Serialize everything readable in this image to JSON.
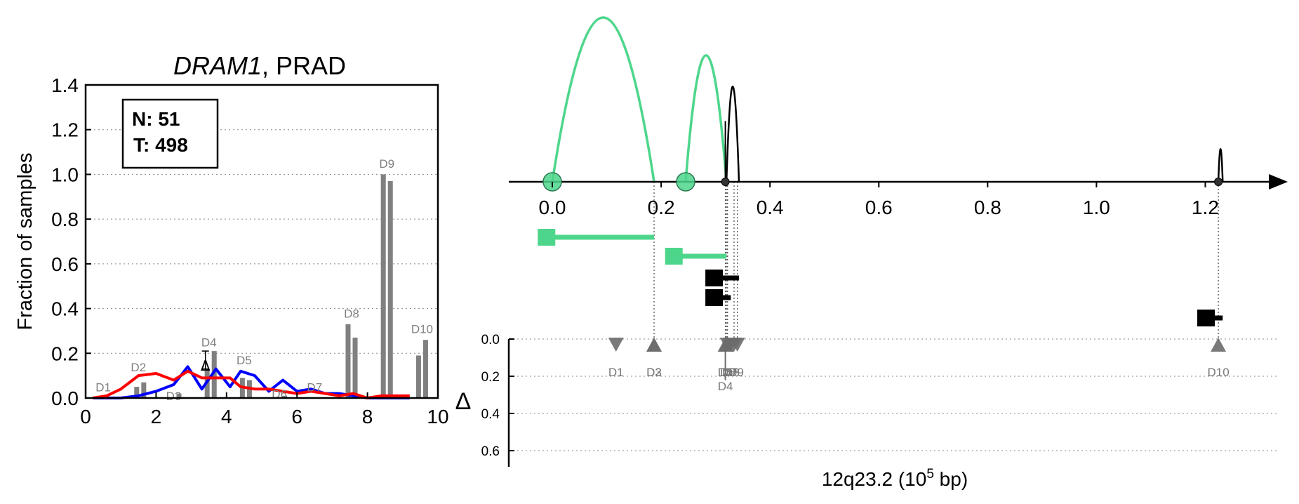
{
  "chart_data": [
    {
      "type": "bar",
      "title_gene": "DRAM1",
      "title_rest": ", PRAD",
      "xlim": [
        0,
        10
      ],
      "ylim": [
        0,
        1.4
      ],
      "ylabel": "Fraction of samples",
      "xticks": [
        0,
        2,
        4,
        6,
        8,
        10
      ],
      "yticks": [
        0.0,
        0.2,
        0.4,
        0.6,
        0.8,
        1.0,
        1.2,
        1.4
      ],
      "grid": "horizontal dotted",
      "legend_box": {
        "n_label": "N: 51",
        "t_label": "T: 498"
      },
      "bar_color": "#808080",
      "bars": [
        {
          "x": 0.55,
          "value": 0.0
        },
        {
          "x": 0.75,
          "value": 0.0
        },
        {
          "x": 1.45,
          "value": 0.05
        },
        {
          "x": 1.65,
          "value": 0.07
        },
        {
          "x": 2.45,
          "value": 0.0
        },
        {
          "x": 2.65,
          "value": 0.02
        },
        {
          "x": 3.45,
          "value": 0.13
        },
        {
          "x": 3.65,
          "value": 0.21
        },
        {
          "x": 4.45,
          "value": 0.09
        },
        {
          "x": 4.65,
          "value": 0.08
        },
        {
          "x": 5.45,
          "value": 0.0
        },
        {
          "x": 5.65,
          "value": 0.01
        },
        {
          "x": 6.45,
          "value": 0.0
        },
        {
          "x": 6.65,
          "value": 0.0
        },
        {
          "x": 7.45,
          "value": 0.33
        },
        {
          "x": 7.65,
          "value": 0.27
        },
        {
          "x": 8.45,
          "value": 1.0
        },
        {
          "x": 8.65,
          "value": 0.97
        },
        {
          "x": 9.45,
          "value": 0.19
        },
        {
          "x": 9.65,
          "value": 0.26
        }
      ],
      "bar_labels": [
        {
          "text": "D1",
          "x": 0.5,
          "y": 0.03
        },
        {
          "text": "D2",
          "x": 1.5,
          "y": 0.12
        },
        {
          "text": "D3",
          "x": 2.5,
          "y": -0.01
        },
        {
          "text": "D4",
          "x": 3.5,
          "y": 0.23
        },
        {
          "text": "D5",
          "x": 4.5,
          "y": 0.15
        },
        {
          "text": "D6",
          "x": 5.5,
          "y": 0.0
        },
        {
          "text": "D7",
          "x": 6.5,
          "y": 0.03
        },
        {
          "text": "D8",
          "x": 7.55,
          "y": 0.36
        },
        {
          "text": "D9",
          "x": 8.55,
          "y": 1.03
        },
        {
          "text": "D10",
          "x": 9.55,
          "y": 0.29
        }
      ],
      "series": [
        {
          "color": "#0000ff",
          "x": [
            0.2,
            0.6,
            1.0,
            1.5,
            2.0,
            2.5,
            2.9,
            3.3,
            3.7,
            4.1,
            4.4,
            4.8,
            5.2,
            5.6,
            6.0,
            6.4,
            6.8,
            7.2,
            7.6,
            8.0,
            8.4,
            8.8,
            9.2
          ],
          "y": [
            0.0,
            0.0,
            0.0,
            0.01,
            0.03,
            0.06,
            0.14,
            0.04,
            0.13,
            0.05,
            0.12,
            0.1,
            0.03,
            0.08,
            0.03,
            0.04,
            0.02,
            0.02,
            0.01,
            0.0,
            0.0,
            0.0,
            0.0
          ]
        },
        {
          "color": "#ff0000",
          "x": [
            0.2,
            0.6,
            1.0,
            1.5,
            2.0,
            2.5,
            2.9,
            3.3,
            3.7,
            4.1,
            4.4,
            4.8,
            5.2,
            5.6,
            6.0,
            6.4,
            6.8,
            7.2,
            7.6,
            8.0,
            8.4,
            8.8,
            9.2
          ],
          "y": [
            0.0,
            0.01,
            0.04,
            0.1,
            0.11,
            0.08,
            0.12,
            0.09,
            0.09,
            0.09,
            0.05,
            0.04,
            0.04,
            0.03,
            0.02,
            0.03,
            0.02,
            0.01,
            0.02,
            0.0,
            0.01,
            0.01,
            0.01
          ]
        }
      ],
      "delta_marker": {
        "symbol": "Δ",
        "x": 3.4,
        "y": 0.15,
        "err": [
          0.13,
          0.21
        ]
      }
    },
    {
      "type": "scatter",
      "xlim": [
        -0.08,
        1.3
      ],
      "xticks": [
        0.0,
        0.2,
        0.4,
        0.6,
        0.8,
        1.0,
        1.2
      ],
      "xlabel_main": "12q23.2 (10",
      "xlabel_exp": "5",
      "xlabel_tail": " bp)",
      "arc_color_green": "#4dd68b",
      "arcs": [
        {
          "x1": 0.0,
          "x2": 0.187,
          "peak": 1.0,
          "color": "green"
        },
        {
          "x1": 0.245,
          "x2": 0.32,
          "peak": 0.77,
          "color": "green"
        },
        {
          "x1": 0.32,
          "x2": 0.343,
          "peak": 0.58,
          "color": "black"
        },
        {
          "x1": 1.224,
          "x2": 1.232,
          "peak": 0.2,
          "color": "black"
        }
      ],
      "spike_lines": [
        {
          "x": 0.318,
          "peak": 0.37
        }
      ],
      "circles": [
        {
          "x": 0.0,
          "color": "green",
          "size": "large"
        },
        {
          "x": 0.245,
          "color": "green",
          "size": "large"
        },
        {
          "x": 0.318,
          "color": "black",
          "size": "small"
        },
        {
          "x": 1.224,
          "color": "black",
          "size": "small"
        }
      ],
      "tracks": [
        {
          "start": -0.01,
          "end": 0.187,
          "row": 1,
          "color": "green"
        },
        {
          "start": 0.224,
          "end": 0.32,
          "row": 2,
          "color": "green"
        },
        {
          "start": 0.298,
          "end": 0.343,
          "row": 3,
          "color": "black"
        },
        {
          "start": 0.298,
          "end": 0.328,
          "row": 4,
          "color": "black"
        },
        {
          "start": 1.202,
          "end": 1.232,
          "row": 5,
          "color": "black"
        }
      ],
      "delta_axis": {
        "label": "Δ",
        "ticks": [
          0.0,
          0.2,
          0.4,
          0.6
        ],
        "range": [
          0,
          0.7
        ]
      },
      "delta_markers": [
        {
          "text": "D1",
          "x": 0.117,
          "dir": "down"
        },
        {
          "text": "D2",
          "x": 0.187,
          "dir": "up"
        },
        {
          "text": "D3",
          "x": 0.187,
          "dir": "up"
        },
        {
          "text": "D4",
          "x": 0.318,
          "dir": "up",
          "err": 0.22
        },
        {
          "text": "D5",
          "x": 0.32,
          "dir": "up"
        },
        {
          "text": "D6",
          "x": 0.322,
          "dir": "down"
        },
        {
          "text": "D7",
          "x": 0.328,
          "dir": "down"
        },
        {
          "text": "D8",
          "x": 0.334,
          "dir": "down"
        },
        {
          "text": "D9",
          "x": 0.34,
          "dir": "down"
        },
        {
          "text": "D10",
          "x": 1.224,
          "dir": "up"
        }
      ],
      "marker_color": "#6b6b6b"
    }
  ]
}
